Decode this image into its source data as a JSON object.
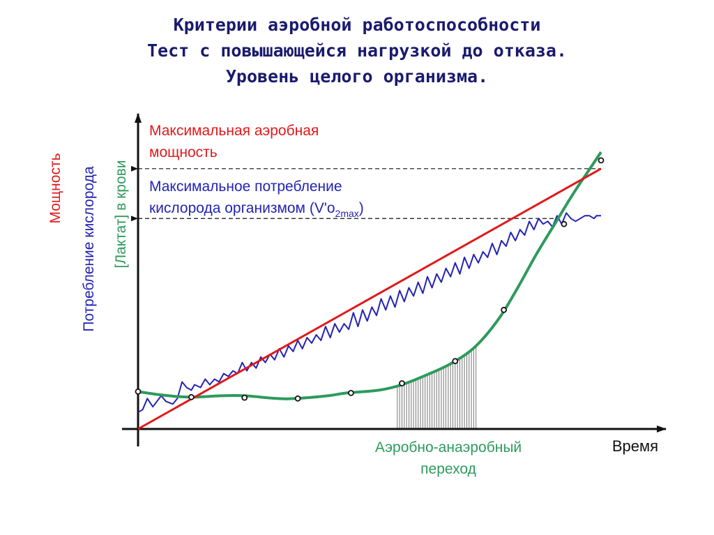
{
  "title_lines": [
    "Критерии аэробной работоспособности",
    "Тест с повышающейся нагрузкой до отказа.",
    "Уровень целого организма."
  ],
  "colors": {
    "title": "#1a1a6e",
    "power": "#e0191b",
    "oxygen": "#2323b4",
    "lactate": "#2e9a5c",
    "axis": "#111111",
    "hatch": "#666666"
  },
  "chart_data": {
    "type": "line",
    "xlabel": "Время",
    "ylabels": {
      "power": "Мощность",
      "oxygen": "Потребление кислорода",
      "lactate": "[Лактат] в крови"
    },
    "axis_units": "relative: x 0–100 (time), y 0–100",
    "xlim": [
      0,
      100
    ],
    "ylim": [
      0,
      100
    ],
    "grid": false,
    "annotations": {
      "max_power": "Максимальная аэробная мощность",
      "max_power_line1": "Максимальная аэробная",
      "max_power_line2": "мощность",
      "vo2max_line1": "Максимальное потребление",
      "vo2max_line2_prefix": "кислорода организмом (V'o",
      "vo2max_sub": "2max",
      "vo2max_suffix": ")",
      "transition_line1": "Аэробно-анаэробный",
      "transition_line2": "переход",
      "max_power_level": 94,
      "vo2max_level": 76,
      "transition_start": 56,
      "transition_end": 73
    },
    "series": [
      {
        "key": "power",
        "x": [
          0,
          100
        ],
        "y": [
          0,
          94
        ]
      },
      {
        "key": "oxygen",
        "x": [
          0,
          1,
          2,
          3.2,
          5,
          6,
          7.5,
          8.5,
          9.5,
          10.5,
          11.5,
          12.2,
          13.5,
          14.5,
          15.5,
          16.5,
          17.5,
          18.5,
          19.5,
          20.5,
          21.5,
          22.5,
          23.5,
          24.5,
          25.5,
          26.5,
          27.5,
          28.5,
          29.5,
          30.5,
          31.5,
          32.5,
          33.5,
          34.5,
          35.5,
          36.5,
          37.5,
          38.5,
          39.5,
          40.5,
          41.5,
          42.5,
          43.5,
          44.5,
          45.5,
          46.5,
          47.5,
          48.5,
          49.5,
          50.5,
          51.5,
          52.5,
          53.5,
          54.5,
          55.5,
          56.5,
          57.5,
          58.5,
          59.5,
          60.5,
          61.5,
          62.5,
          63.5,
          64.5,
          65.5,
          66.5,
          67.5,
          68.5,
          69.5,
          70.5,
          71.5,
          72.5,
          73.5,
          74.5,
          75.5,
          76.5,
          77.5,
          78.5,
          79.5,
          80.5,
          81.5,
          82.5,
          83.5,
          84.5,
          85.5,
          86.5,
          87.5,
          88.5,
          89.5,
          90.5,
          91.5,
          92.5,
          93.5,
          94.5,
          95.5,
          96.5,
          97.5,
          98.5,
          99,
          100
        ],
        "y": [
          6,
          7,
          11,
          8,
          12,
          10,
          9,
          11,
          17,
          15,
          14,
          16,
          15,
          18,
          16,
          18,
          17,
          20,
          19,
          21,
          20,
          24,
          21,
          24,
          22,
          26,
          24,
          27,
          25,
          29,
          26,
          30,
          28,
          32,
          29,
          33,
          31,
          34,
          32,
          37,
          33,
          38,
          35,
          38,
          36,
          42,
          37,
          43,
          39,
          44,
          41,
          47,
          43,
          48,
          44,
          50,
          46,
          51,
          48,
          53,
          49,
          55,
          51,
          56,
          53,
          58,
          55,
          60,
          56,
          62,
          58,
          63,
          60,
          64,
          62,
          67,
          63,
          68,
          66,
          71,
          68,
          72,
          70,
          75,
          72,
          76,
          74,
          75,
          73,
          77,
          74,
          78,
          76,
          75,
          76,
          77,
          77,
          76,
          77,
          77
        ]
      },
      {
        "key": "lactate",
        "x": [
          0,
          4,
          8,
          12,
          18,
          23,
          30,
          34,
          41,
          45,
          52,
          57,
          63,
          68,
          73,
          78,
          82,
          86,
          90,
          94,
          98,
          100
        ],
        "y": [
          13.5,
          12.5,
          11.8,
          11.5,
          12,
          12,
          11,
          11,
          12,
          13,
          14,
          16,
          20,
          24,
          30,
          40,
          51,
          63,
          74,
          85,
          95,
          100
        ]
      }
    ],
    "markers": {
      "lactate": [
        [
          0,
          13.5
        ],
        [
          11.5,
          11.5
        ],
        [
          23,
          11.3
        ],
        [
          34.5,
          11
        ],
        [
          46,
          13
        ],
        [
          57,
          16.5
        ],
        [
          68.5,
          24.5
        ],
        [
          79,
          43
        ],
        [
          92,
          74
        ],
        [
          100,
          97
        ]
      ]
    }
  }
}
